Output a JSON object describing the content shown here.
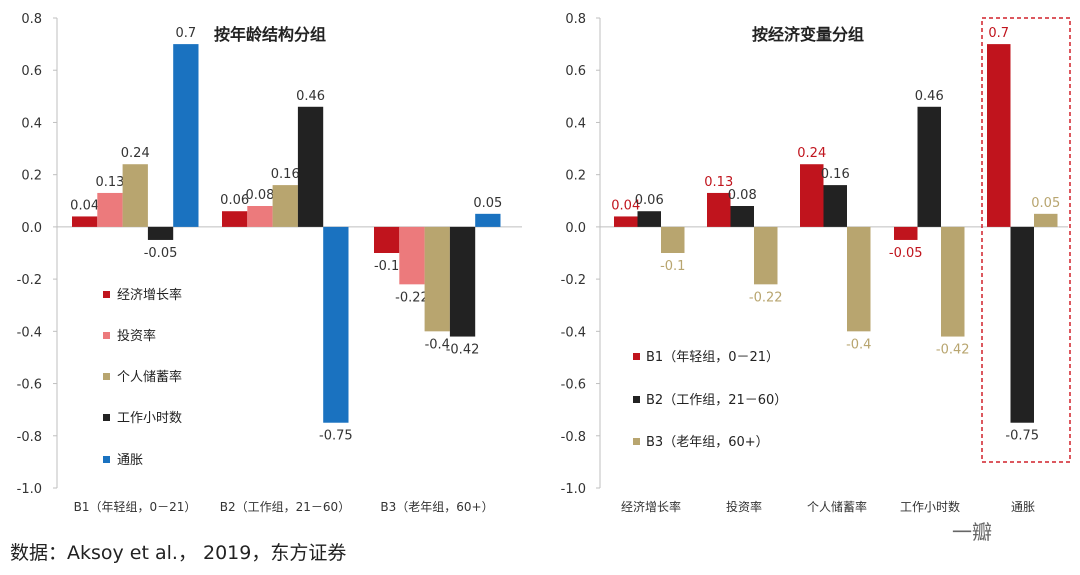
{
  "source": "数据：Aksoy et al.， 2019，东方证券",
  "watermark": "一瓣",
  "colors": {
    "red": "#c0141d",
    "pink": "#ec7a7c",
    "tan": "#b8a56f",
    "black": "#222222",
    "blue": "#1a72c0",
    "highlight_border": "#d0202a"
  },
  "chart_data": [
    {
      "type": "bar",
      "title": "按年龄结构分组",
      "categories": [
        "B1（年轻组，0－21）",
        "B2（工作组，21－60）",
        "B3（老年组，60+）"
      ],
      "series": [
        {
          "name": "经济增长率",
          "values": [
            0.04,
            0.06,
            -0.1
          ]
        },
        {
          "name": "投资率",
          "values": [
            0.13,
            0.08,
            -0.22
          ]
        },
        {
          "name": "个人储蓄率",
          "values": [
            0.24,
            0.16,
            -0.4
          ]
        },
        {
          "name": "工作小时数",
          "values": [
            -0.05,
            0.46,
            -0.42
          ]
        },
        {
          "name": "通胀",
          "values": [
            0.7,
            -0.75,
            0.05
          ]
        }
      ],
      "data_labels": [
        [
          "0.04",
          "0.06",
          "-0.1"
        ],
        [
          "0.13",
          "0.08",
          "-0.22"
        ],
        [
          "0.24",
          "0.16",
          "-0.4"
        ],
        [
          "-0.05",
          "0.46",
          "-0.42"
        ],
        [
          "0.7",
          "-0.75",
          "0.05"
        ]
      ],
      "ylim": [
        -1.0,
        0.8
      ],
      "yticks": [
        "0.8",
        "0.6",
        "0.4",
        "0.2",
        "0.0",
        "-0.2",
        "-0.4",
        "-0.6",
        "-0.8",
        "-1.0"
      ],
      "legend_position": "left",
      "grid": false
    },
    {
      "type": "bar",
      "title": "按经济变量分组",
      "categories": [
        "经济增长率",
        "投资率",
        "个人储蓄率",
        "工作小时数",
        "通胀"
      ],
      "series": [
        {
          "name": "B1（年轻组，0－21）",
          "values": [
            0.04,
            0.13,
            0.24,
            -0.05,
            0.7
          ]
        },
        {
          "name": "B2（工作组，21－60）",
          "values": [
            0.06,
            0.08,
            0.16,
            0.46,
            -0.75
          ]
        },
        {
          "name": "B3（老年组，60+）",
          "values": [
            -0.1,
            -0.22,
            -0.4,
            -0.42,
            0.05
          ]
        }
      ],
      "data_labels": [
        [
          "0.04",
          "0.13",
          "0.24",
          "-0.05",
          "0.7"
        ],
        [
          "0.06",
          "0.08",
          "0.16",
          "0.46",
          "-0.75"
        ],
        [
          "-0.1",
          "-0.22",
          "-0.4",
          "-0.42",
          "0.05"
        ]
      ],
      "ylim": [
        -1.0,
        0.8
      ],
      "yticks": [
        "0.8",
        "0.6",
        "0.4",
        "0.2",
        "0.0",
        "-0.2",
        "-0.4",
        "-0.6",
        "-0.8",
        "-1.0"
      ],
      "legend_position": "bottom-left",
      "highlight_category": "通胀",
      "grid": false
    }
  ]
}
